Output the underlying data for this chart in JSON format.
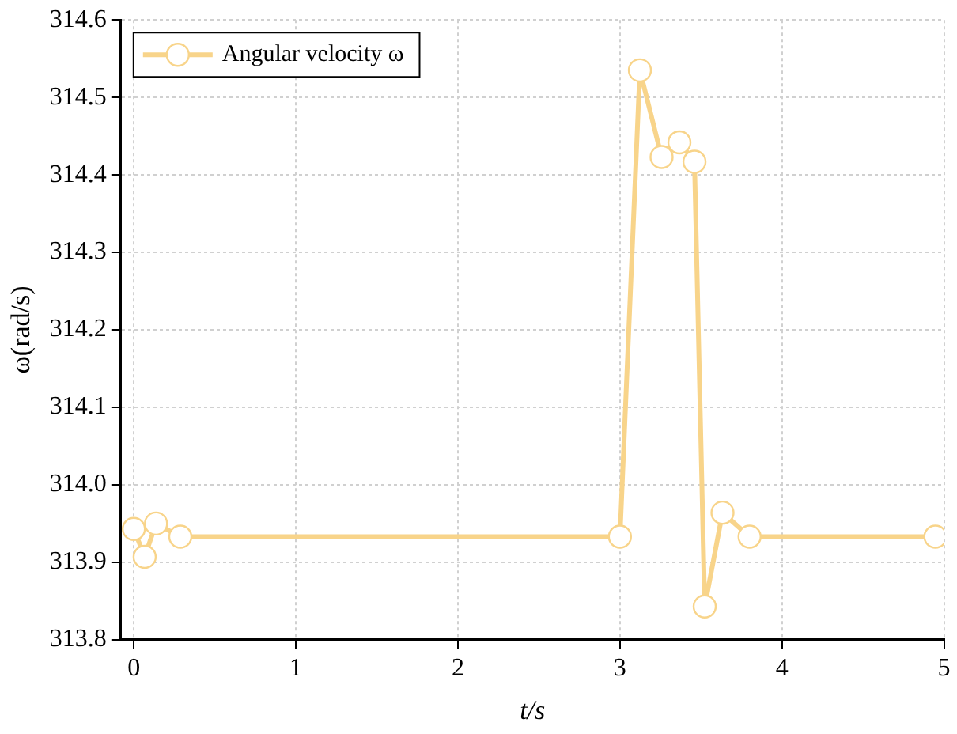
{
  "chart_data": {
    "type": "line",
    "xlabel": "t/s",
    "ylabel": "ω(rad/s)",
    "x": [
      0,
      0.067,
      0.137,
      0.287,
      3.0,
      3.123,
      3.257,
      3.367,
      3.46,
      3.523,
      3.633,
      3.8,
      4.947
    ],
    "series": [
      {
        "name": "Angular velocity ω",
        "color": "#f8d48a",
        "values": [
          313.943,
          313.907,
          313.95,
          313.933,
          313.933,
          314.535,
          314.423,
          314.442,
          314.417,
          313.843,
          313.964,
          313.933,
          313.933
        ]
      }
    ],
    "xlim": [
      -0.08,
      5.0
    ],
    "xticks": [
      0,
      1,
      2,
      3,
      4,
      5
    ],
    "ylim": [
      313.8,
      314.6
    ],
    "yticks": [
      {
        "value": 313.8,
        "label": "313.8"
      },
      {
        "value": 313.9,
        "label": "313.9"
      },
      {
        "value": 314.0,
        "label": "314.0"
      },
      {
        "value": 314.1,
        "label": "314.1"
      },
      {
        "value": 314.2,
        "label": "314.2"
      },
      {
        "value": 314.3,
        "label": "314.3"
      },
      {
        "value": 314.4,
        "label": "314.4"
      },
      {
        "value": 314.5,
        "label": "314.5"
      },
      {
        "value": 314.6,
        "label": "314.6"
      }
    ],
    "grid": true,
    "legend": "top left",
    "marker": "circle",
    "line_style": "solid"
  }
}
